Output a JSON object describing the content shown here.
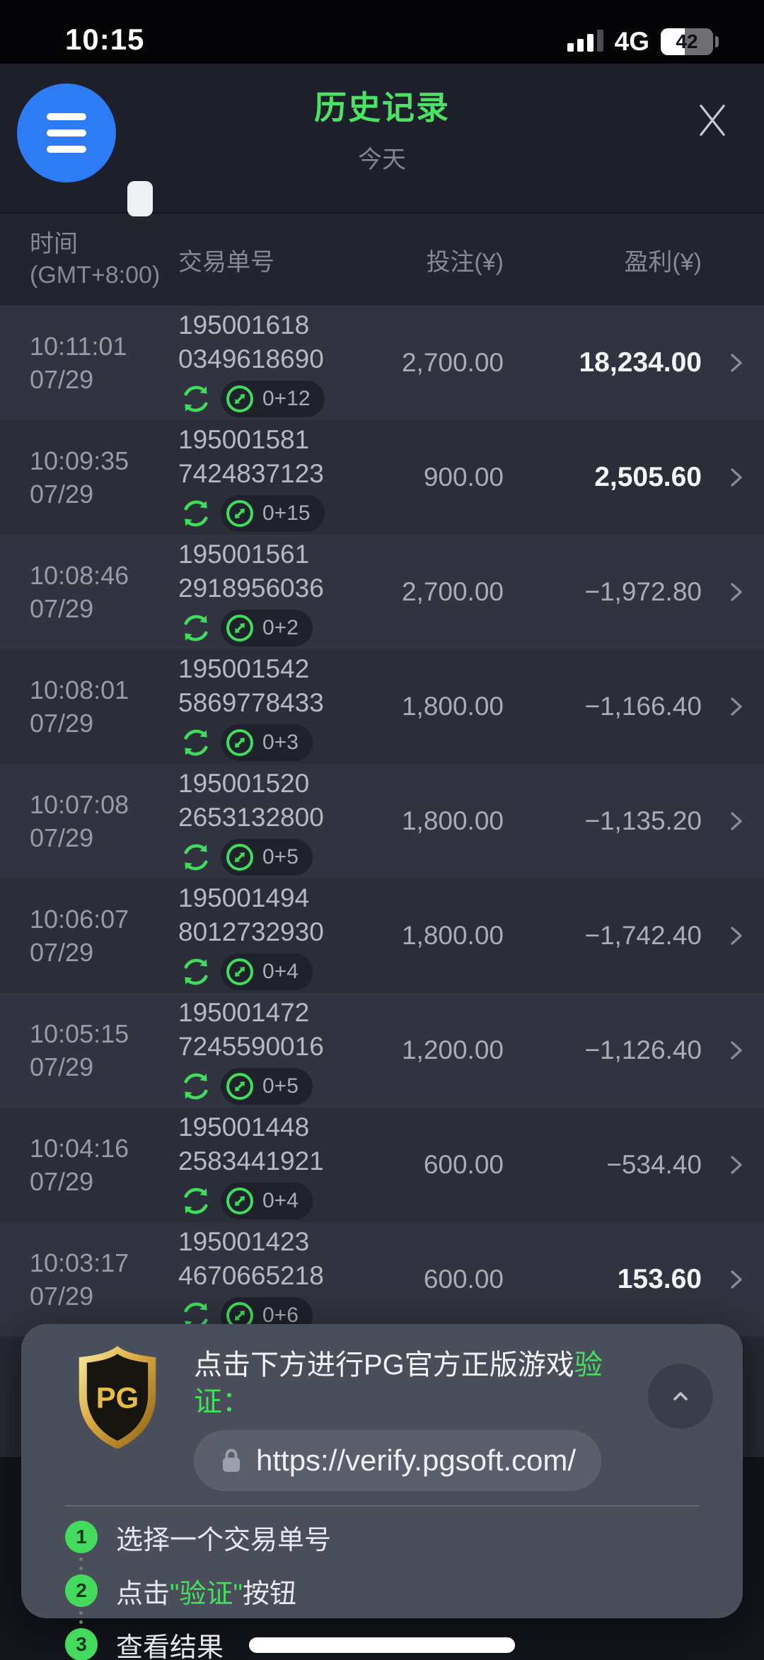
{
  "status_bar": {
    "time": "10:15",
    "network": "4G",
    "battery": "42"
  },
  "header": {
    "title": "历史记录",
    "subtitle": "今天"
  },
  "table": {
    "headers": {
      "time_line1": "时间",
      "time_line2": "(GMT+8:00)",
      "order": "交易单号",
      "bet": "投注(¥)",
      "profit": "盈利(¥)"
    },
    "rows": [
      {
        "time": "10:11:01",
        "date": "07/29",
        "order1": "195001618",
        "order2": "0349618690",
        "badge": "0+12",
        "bet": "2,700.00",
        "profit": "18,234.00",
        "positive": true
      },
      {
        "time": "10:09:35",
        "date": "07/29",
        "order1": "195001581",
        "order2": "7424837123",
        "badge": "0+15",
        "bet": "900.00",
        "profit": "2,505.60",
        "positive": true
      },
      {
        "time": "10:08:46",
        "date": "07/29",
        "order1": "195001561",
        "order2": "2918956036",
        "badge": "0+2",
        "bet": "2,700.00",
        "profit": "−1,972.80",
        "positive": false
      },
      {
        "time": "10:08:01",
        "date": "07/29",
        "order1": "195001542",
        "order2": "5869778433",
        "badge": "0+3",
        "bet": "1,800.00",
        "profit": "−1,166.40",
        "positive": false
      },
      {
        "time": "10:07:08",
        "date": "07/29",
        "order1": "195001520",
        "order2": "2653132800",
        "badge": "0+5",
        "bet": "1,800.00",
        "profit": "−1,135.20",
        "positive": false
      },
      {
        "time": "10:06:07",
        "date": "07/29",
        "order1": "195001494",
        "order2": "8012732930",
        "badge": "0+4",
        "bet": "1,800.00",
        "profit": "−1,742.40",
        "positive": false
      },
      {
        "time": "10:05:15",
        "date": "07/29",
        "order1": "195001472",
        "order2": "7245590016",
        "badge": "0+5",
        "bet": "1,200.00",
        "profit": "−1,126.40",
        "positive": false
      },
      {
        "time": "10:04:16",
        "date": "07/29",
        "order1": "195001448",
        "order2": "2583441921",
        "badge": "0+4",
        "bet": "600.00",
        "profit": "−534.40",
        "positive": false
      },
      {
        "time": "10:03:17",
        "date": "07/29",
        "order1": "195001423",
        "order2": "4670665218",
        "badge": "0+6",
        "bet": "600.00",
        "profit": "153.60",
        "positive": true
      }
    ]
  },
  "verify_panel": {
    "logo_text": "PG",
    "headline_prefix": "点击下方进行PG官方正版游戏",
    "headline_highlight": "验证：",
    "url": "https://verify.pgsoft.com/",
    "steps": [
      {
        "num": "1",
        "prefix": "选择一个交易单号",
        "highlight": "",
        "suffix": ""
      },
      {
        "num": "2",
        "prefix": "点击",
        "highlight": "\"验证\"",
        "suffix": "按钮"
      },
      {
        "num": "3",
        "prefix": "查看结果",
        "highlight": "",
        "suffix": ""
      }
    ]
  },
  "icons": {
    "menu": "hamburger-icon",
    "close": "close-icon",
    "signal": "cellular-signal-icon",
    "battery": "battery-icon",
    "spin": "refresh-arrows-icon",
    "bonus": "circle-diagonal-arrows-icon",
    "row_chevron": "chevron-right-icon",
    "lock": "lock-icon",
    "collapse": "chevron-up-icon",
    "logo": "pg-shield-logo",
    "home": "home-indicator"
  },
  "colors": {
    "accent_green": "#45de5f",
    "title_green": "#4ce264",
    "menu_blue": "#2e7bf6",
    "gold": "#e7bc45",
    "panel_bg": "#4a4e5a",
    "row_odd": "#313440",
    "row_even": "#2b2e38",
    "positive_text": "#f4f6f8",
    "negative_text": "#a9adb8"
  }
}
